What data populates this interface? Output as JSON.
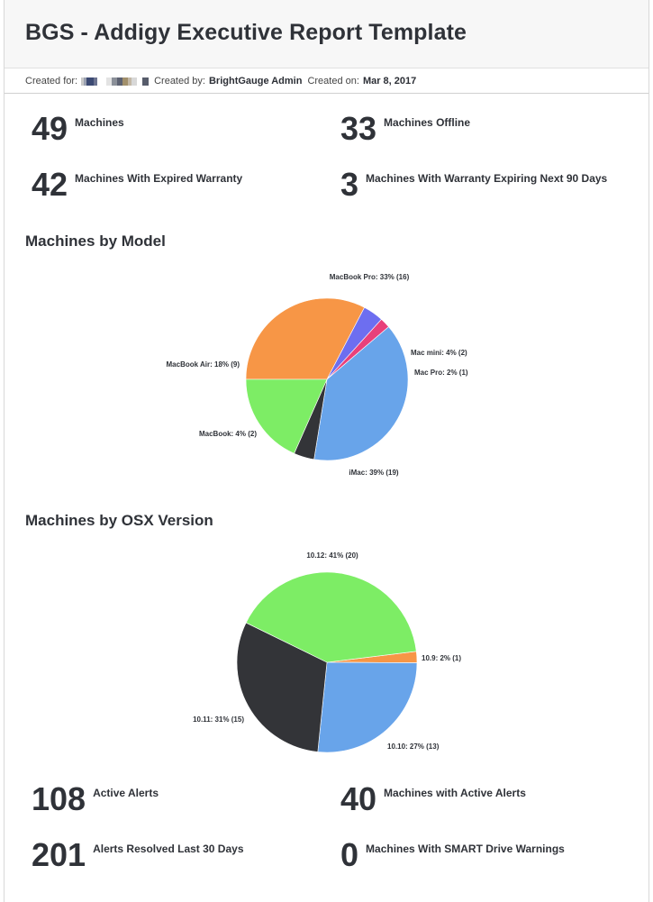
{
  "header": {
    "title": "BGS - Addigy Executive Report Template",
    "created_for_label": "Created for:",
    "created_by_label": "Created by:",
    "created_by_value": "BrightGauge Admin",
    "created_on_label": "Created on:",
    "created_on_value": "Mar 8, 2017"
  },
  "stats_top": [
    {
      "value": "49",
      "label": "Machines"
    },
    {
      "value": "33",
      "label": "Machines Offline"
    },
    {
      "value": "42",
      "label": "Machines With Expired Warranty"
    },
    {
      "value": "3",
      "label": "Machines With Warranty Expiring Next 90 Days"
    }
  ],
  "stats_bottom": [
    {
      "value": "108",
      "label": "Active Alerts"
    },
    {
      "value": "40",
      "label": "Machines with Active Alerts"
    },
    {
      "value": "201",
      "label": "Alerts Resolved Last 30 Days"
    },
    {
      "value": "0",
      "label": "Machines With SMART Drive Warnings"
    }
  ],
  "chart_data": [
    {
      "type": "pie",
      "title": "Machines by Model",
      "slices": [
        {
          "name": "MacBook Pro",
          "value": 16,
          "label": "MacBook Pro: 33% (16)",
          "color": "#f79646"
        },
        {
          "name": "Mac mini",
          "value": 2,
          "label": "Mac mini: 4% (2)",
          "color": "#6d6ef0"
        },
        {
          "name": "Mac Pro",
          "value": 1,
          "label": "Mac Pro: 2% (1)",
          "color": "#e8407a"
        },
        {
          "name": "iMac",
          "value": 19,
          "label": "iMac: 39% (19)",
          "color": "#68a4ea"
        },
        {
          "name": "MacBook",
          "value": 2,
          "label": "MacBook: 4% (2)",
          "color": "#333438"
        },
        {
          "name": "MacBook Air",
          "value": 9,
          "label": "MacBook Air: 18% (9)",
          "color": "#7ded65"
        }
      ]
    },
    {
      "type": "pie",
      "title": "Machines by OSX Version",
      "slices": [
        {
          "name": "10.9",
          "value": 1,
          "label": "10.9: 2% (1)",
          "color": "#f79646"
        },
        {
          "name": "10.10",
          "value": 13,
          "label": "10.10: 27% (13)",
          "color": "#68a4ea"
        },
        {
          "name": "10.11",
          "value": 15,
          "label": "10.11: 31% (15)",
          "color": "#333438"
        },
        {
          "name": "10.12",
          "value": 20,
          "label": "10.12: 41% (20)",
          "color": "#7ded65"
        }
      ]
    }
  ]
}
